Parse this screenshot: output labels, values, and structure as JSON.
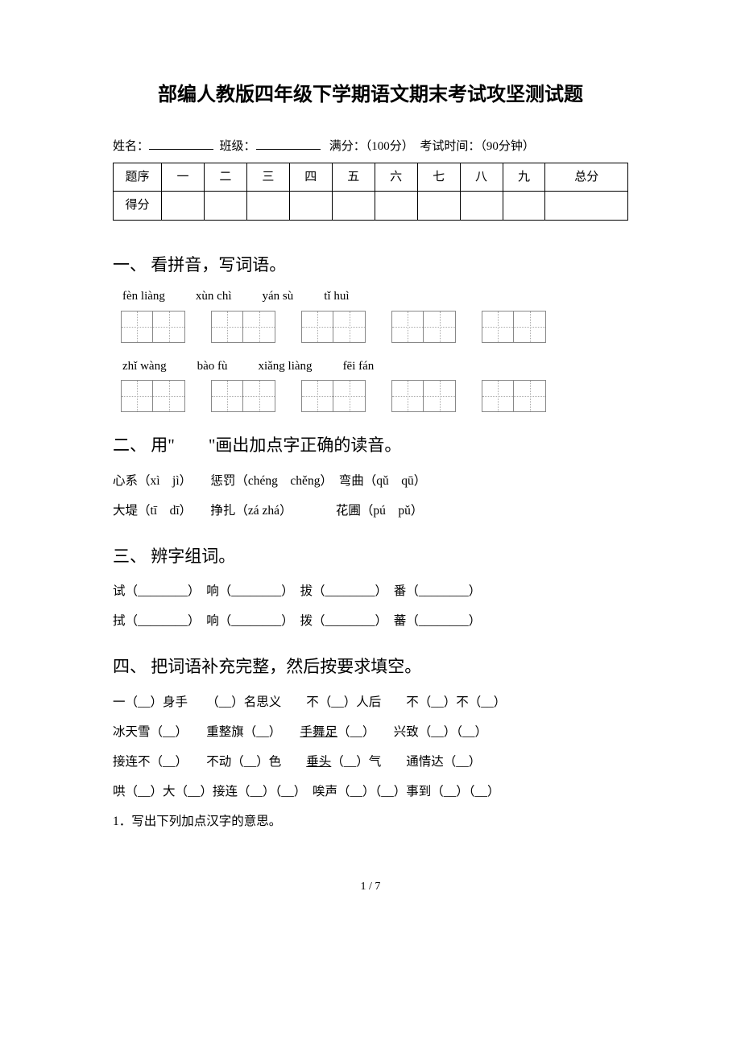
{
  "title": "部编人教版四年级下学期语文期末考试攻坚测试题",
  "info": {
    "name_label": "姓名：",
    "class_label": "班级：",
    "score_label": "满分：",
    "score_val": "（100分）",
    "time_label": "考试时间：",
    "time_val": "（90分钟）"
  },
  "scoreTable": {
    "header": [
      "题序",
      "一",
      "二",
      "三",
      "四",
      "五",
      "六",
      "七",
      "八",
      "九",
      "总分"
    ],
    "row2": "得分"
  },
  "s1": {
    "title": "一、 看拼音，写词语。",
    "pinyin1": [
      "fèn liàng",
      "xùn chì",
      "yán sù",
      "tǐ huì"
    ],
    "pinyin2": [
      "zhǐ wàng",
      "bào fù",
      "xiǎng liàng",
      "fēi fán"
    ]
  },
  "s2": {
    "title": "二、 用\"　　\"画出加点字正确的读音。",
    "line1": "心系（xì　jì）　　惩罚（chéng　chěng）　弯曲（qǔ　qū）",
    "line2": "大堤（tī　dī）　　挣扎（zá zhá）　　　　花圃（pú　pǔ）"
  },
  "s3": {
    "title": "三、 辨字组词。",
    "line1": "试（________）　响（________）　拔（________）　番（________）",
    "line2": "拭（________）　响（________）　拨（________）　蕃（________）"
  },
  "s4": {
    "title": "四、 把词语补充完整，然后按要求填空。",
    "line1": "一（__）身手　　（__）名思义　　不（__）人后　　不（__）不（__）",
    "line2_a": "冰天雪（__）　　重整旗（__）　　",
    "line2_u": "手舞足",
    "line2_b": "（__）　　兴致（__）（__）",
    "line3_a": "接连不（__）　　不动（__）色　　",
    "line3_u": "垂头",
    "line3_b": "（__）气　　通情达（__）",
    "line4": "哄（__）大（__）接连（__）（__）　唉声（__）（__）事到（__）（__）",
    "line5": "1．写出下列加点汉字的意思。"
  },
  "pageNum": "1 / 7"
}
